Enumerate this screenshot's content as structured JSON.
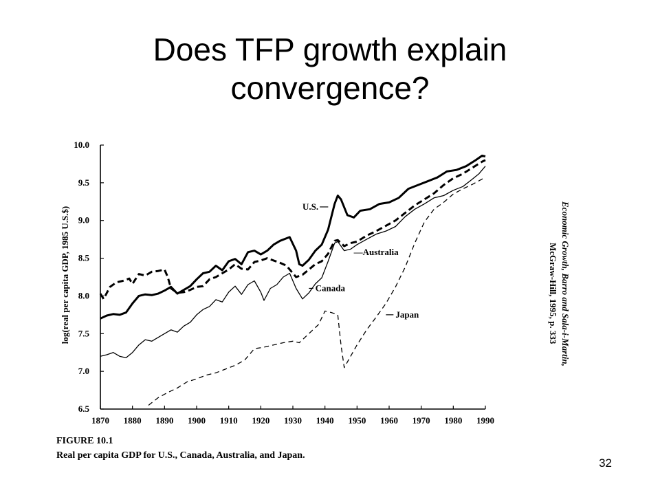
{
  "slide": {
    "title_line1": "Does TFP growth explain",
    "title_line2": "convergence?",
    "page_number": "32"
  },
  "colors": {
    "ink": "#000000",
    "background": "#ffffff"
  },
  "chart_data": {
    "type": "line",
    "figure_label": "FIGURE 10.1",
    "caption": "Real per capita GDP for U.S., Canada, Australia, and Japan.",
    "ylabel": "log(real per capita GDP, 1985 U.S.$)",
    "xlim": [
      1870,
      1990
    ],
    "ylim": [
      6.5,
      10.0
    ],
    "x_ticks": [
      1870,
      1880,
      1890,
      1900,
      1910,
      1920,
      1930,
      1940,
      1950,
      1960,
      1970,
      1980,
      1990
    ],
    "y_ticks": [
      "6.5",
      "7.0",
      "7.5",
      "8.0",
      "8.5",
      "9.0",
      "9.5",
      "10.0"
    ],
    "grid": false,
    "source_line1": "Economic Growth, Barro and Sala-i-Martin,",
    "source_line2": "McGraw-Hill, 1995, p. 333",
    "series": [
      {
        "name": "U.S.",
        "style": "thick-solid",
        "points": [
          [
            1870,
            7.7
          ],
          [
            1872,
            7.74
          ],
          [
            1874,
            7.76
          ],
          [
            1876,
            7.75
          ],
          [
            1878,
            7.78
          ],
          [
            1880,
            7.9
          ],
          [
            1882,
            8.0
          ],
          [
            1884,
            8.02
          ],
          [
            1886,
            8.01
          ],
          [
            1888,
            8.03
          ],
          [
            1890,
            8.07
          ],
          [
            1892,
            8.12
          ],
          [
            1894,
            8.03
          ],
          [
            1896,
            8.08
          ],
          [
            1898,
            8.13
          ],
          [
            1900,
            8.22
          ],
          [
            1902,
            8.3
          ],
          [
            1904,
            8.32
          ],
          [
            1906,
            8.4
          ],
          [
            1908,
            8.34
          ],
          [
            1910,
            8.46
          ],
          [
            1912,
            8.49
          ],
          [
            1914,
            8.42
          ],
          [
            1916,
            8.58
          ],
          [
            1918,
            8.6
          ],
          [
            1920,
            8.55
          ],
          [
            1922,
            8.6
          ],
          [
            1924,
            8.68
          ],
          [
            1926,
            8.73
          ],
          [
            1929,
            8.78
          ],
          [
            1931,
            8.6
          ],
          [
            1932,
            8.42
          ],
          [
            1933,
            8.4
          ],
          [
            1935,
            8.48
          ],
          [
            1937,
            8.6
          ],
          [
            1939,
            8.68
          ],
          [
            1941,
            8.88
          ],
          [
            1943,
            9.22
          ],
          [
            1944,
            9.33
          ],
          [
            1945,
            9.28
          ],
          [
            1947,
            9.07
          ],
          [
            1949,
            9.04
          ],
          [
            1951,
            9.13
          ],
          [
            1954,
            9.15
          ],
          [
            1957,
            9.22
          ],
          [
            1960,
            9.24
          ],
          [
            1963,
            9.3
          ],
          [
            1966,
            9.42
          ],
          [
            1969,
            9.47
          ],
          [
            1972,
            9.52
          ],
          [
            1975,
            9.57
          ],
          [
            1978,
            9.65
          ],
          [
            1981,
            9.67
          ],
          [
            1984,
            9.72
          ],
          [
            1987,
            9.8
          ],
          [
            1989,
            9.86
          ],
          [
            1990,
            9.85
          ]
        ]
      },
      {
        "name": "Australia",
        "style": "thick-dashed",
        "points": [
          [
            1870,
            8.03
          ],
          [
            1871,
            7.96
          ],
          [
            1873,
            8.12
          ],
          [
            1875,
            8.18
          ],
          [
            1877,
            8.2
          ],
          [
            1879,
            8.23
          ],
          [
            1880,
            8.16
          ],
          [
            1882,
            8.29
          ],
          [
            1884,
            8.27
          ],
          [
            1886,
            8.32
          ],
          [
            1888,
            8.33
          ],
          [
            1890,
            8.35
          ],
          [
            1891,
            8.25
          ],
          [
            1892,
            8.1
          ],
          [
            1894,
            8.04
          ],
          [
            1896,
            8.05
          ],
          [
            1898,
            8.08
          ],
          [
            1900,
            8.12
          ],
          [
            1902,
            8.13
          ],
          [
            1904,
            8.22
          ],
          [
            1906,
            8.25
          ],
          [
            1908,
            8.3
          ],
          [
            1910,
            8.35
          ],
          [
            1912,
            8.42
          ],
          [
            1914,
            8.36
          ],
          [
            1916,
            8.35
          ],
          [
            1918,
            8.45
          ],
          [
            1920,
            8.47
          ],
          [
            1922,
            8.5
          ],
          [
            1924,
            8.47
          ],
          [
            1926,
            8.44
          ],
          [
            1928,
            8.4
          ],
          [
            1930,
            8.3
          ],
          [
            1931,
            8.25
          ],
          [
            1933,
            8.28
          ],
          [
            1935,
            8.35
          ],
          [
            1937,
            8.42
          ],
          [
            1939,
            8.46
          ],
          [
            1941,
            8.56
          ],
          [
            1943,
            8.73
          ],
          [
            1944,
            8.74
          ],
          [
            1946,
            8.66
          ],
          [
            1948,
            8.7
          ],
          [
            1950,
            8.72
          ],
          [
            1953,
            8.8
          ],
          [
            1956,
            8.86
          ],
          [
            1959,
            8.93
          ],
          [
            1962,
            9.0
          ],
          [
            1965,
            9.1
          ],
          [
            1968,
            9.2
          ],
          [
            1971,
            9.28
          ],
          [
            1974,
            9.36
          ],
          [
            1977,
            9.47
          ],
          [
            1980,
            9.56
          ],
          [
            1983,
            9.62
          ],
          [
            1986,
            9.7
          ],
          [
            1989,
            9.78
          ],
          [
            1990,
            9.8
          ]
        ]
      },
      {
        "name": "Canada",
        "style": "thin-solid",
        "points": [
          [
            1870,
            7.2
          ],
          [
            1872,
            7.22
          ],
          [
            1874,
            7.25
          ],
          [
            1876,
            7.2
          ],
          [
            1878,
            7.18
          ],
          [
            1880,
            7.25
          ],
          [
            1882,
            7.35
          ],
          [
            1884,
            7.42
          ],
          [
            1886,
            7.4
          ],
          [
            1888,
            7.45
          ],
          [
            1890,
            7.5
          ],
          [
            1892,
            7.55
          ],
          [
            1894,
            7.52
          ],
          [
            1896,
            7.6
          ],
          [
            1898,
            7.65
          ],
          [
            1900,
            7.75
          ],
          [
            1902,
            7.82
          ],
          [
            1904,
            7.86
          ],
          [
            1906,
            7.95
          ],
          [
            1908,
            7.92
          ],
          [
            1910,
            8.05
          ],
          [
            1912,
            8.13
          ],
          [
            1914,
            8.02
          ],
          [
            1916,
            8.15
          ],
          [
            1918,
            8.2
          ],
          [
            1920,
            8.05
          ],
          [
            1921,
            7.94
          ],
          [
            1923,
            8.1
          ],
          [
            1925,
            8.15
          ],
          [
            1927,
            8.25
          ],
          [
            1929,
            8.3
          ],
          [
            1931,
            8.1
          ],
          [
            1933,
            7.96
          ],
          [
            1935,
            8.04
          ],
          [
            1937,
            8.16
          ],
          [
            1939,
            8.24
          ],
          [
            1941,
            8.46
          ],
          [
            1943,
            8.7
          ],
          [
            1944,
            8.72
          ],
          [
            1946,
            8.6
          ],
          [
            1948,
            8.62
          ],
          [
            1950,
            8.68
          ],
          [
            1953,
            8.75
          ],
          [
            1956,
            8.82
          ],
          [
            1959,
            8.86
          ],
          [
            1962,
            8.92
          ],
          [
            1965,
            9.05
          ],
          [
            1968,
            9.15
          ],
          [
            1971,
            9.22
          ],
          [
            1974,
            9.3
          ],
          [
            1977,
            9.33
          ],
          [
            1980,
            9.4
          ],
          [
            1983,
            9.45
          ],
          [
            1986,
            9.55
          ],
          [
            1988,
            9.62
          ],
          [
            1990,
            9.72
          ]
        ]
      },
      {
        "name": "Japan",
        "style": "thin-dashed",
        "points": [
          [
            1885,
            6.55
          ],
          [
            1888,
            6.65
          ],
          [
            1891,
            6.72
          ],
          [
            1894,
            6.78
          ],
          [
            1897,
            6.86
          ],
          [
            1900,
            6.9
          ],
          [
            1903,
            6.95
          ],
          [
            1906,
            6.98
          ],
          [
            1909,
            7.03
          ],
          [
            1912,
            7.08
          ],
          [
            1915,
            7.15
          ],
          [
            1918,
            7.3
          ],
          [
            1921,
            7.32
          ],
          [
            1924,
            7.35
          ],
          [
            1927,
            7.38
          ],
          [
            1930,
            7.4
          ],
          [
            1932,
            7.38
          ],
          [
            1935,
            7.5
          ],
          [
            1938,
            7.62
          ],
          [
            1940,
            7.8
          ],
          [
            1942,
            7.78
          ],
          [
            1944,
            7.75
          ],
          [
            1945,
            7.35
          ],
          [
            1946,
            7.05
          ],
          [
            1948,
            7.2
          ],
          [
            1950,
            7.35
          ],
          [
            1953,
            7.55
          ],
          [
            1956,
            7.72
          ],
          [
            1959,
            7.9
          ],
          [
            1962,
            8.12
          ],
          [
            1965,
            8.38
          ],
          [
            1968,
            8.7
          ],
          [
            1971,
            8.98
          ],
          [
            1974,
            9.15
          ],
          [
            1977,
            9.24
          ],
          [
            1980,
            9.35
          ],
          [
            1983,
            9.42
          ],
          [
            1986,
            9.48
          ],
          [
            1989,
            9.55
          ],
          [
            1990,
            9.57
          ]
        ]
      }
    ],
    "labels": [
      {
        "series": "U.S.",
        "text": "U.S.",
        "at": [
          1933,
          9.18
        ],
        "leader_to": [
          1941,
          9.18
        ]
      },
      {
        "series": "Australia",
        "text": "—Australia",
        "at": [
          1949,
          8.58
        ]
      },
      {
        "series": "Canada",
        "text": "Canada",
        "at": [
          1937,
          8.1
        ],
        "leader_to": [
          1935,
          8.1
        ]
      },
      {
        "series": "Japan",
        "text": "Japan",
        "at": [
          1962,
          7.75
        ],
        "leader_to": [
          1959,
          7.75
        ]
      }
    ]
  }
}
